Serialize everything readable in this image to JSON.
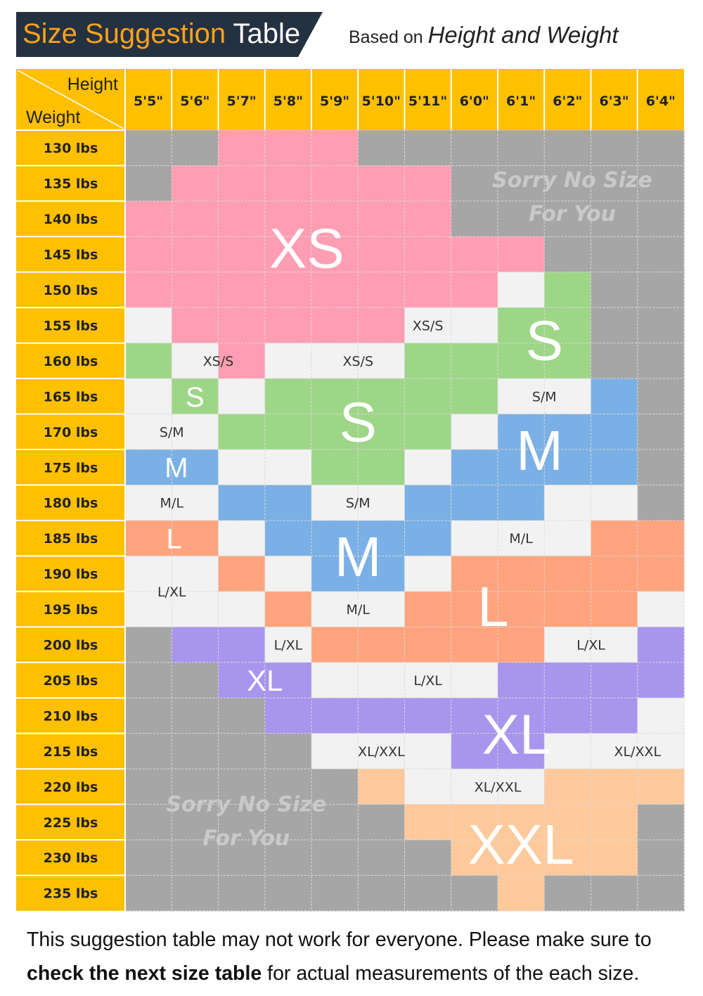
{
  "header": {
    "title_part1": "Size Suggestion",
    "title_part2": "Table",
    "subtitle_prefix": "Based on",
    "subtitle_emphasis": "Height and Weight"
  },
  "colors": {
    "header_bg": "#243140",
    "title_orange": "#f7a21d",
    "axis_yellow": "#ffc000",
    "no_size_gray": "#a6a6a6",
    "overlap_white": "#f2f2f2",
    "XS": "#ff9eb2",
    "S": "#9ed687",
    "M": "#7ab0e5",
    "L": "#ffa47e",
    "XL": "#a895ed",
    "XXL": "#ffc99c"
  },
  "table": {
    "corner_top": "Height",
    "corner_bottom": "Weight",
    "heights": [
      "5'5\"",
      "5'6\"",
      "5'7\"",
      "5'8\"",
      "5'9\"",
      "5'10\"",
      "5'11\"",
      "6'0\"",
      "6'1\"",
      "6'2\"",
      "6'3\"",
      "6'4\""
    ],
    "weights": [
      "130 lbs",
      "135 lbs",
      "140 lbs",
      "145 lbs",
      "150 lbs",
      "155 lbs",
      "160 lbs",
      "165 lbs",
      "170 lbs",
      "175 lbs",
      "180 lbs",
      "185 lbs",
      "190 lbs",
      "195 lbs",
      "200 lbs",
      "205 lbs",
      "210 lbs",
      "215 lbs",
      "220 lbs",
      "225 lbs",
      "230 lbs",
      "235 lbs"
    ],
    "grid": [
      "g g X X X g g g g g g g",
      "g X X X X X X g g g g g",
      "X X X X X X X g g g g g",
      "X X X X X X X X X g g g",
      "X X X X X X X X w S g g",
      "w X X X X X w w S S g g",
      "S w X w w w S S S S g g",
      "w S w S S S S S w w M g",
      "w w S S S S S w M M M g",
      "M M w w S S w M M M M g",
      "w w M M w w M M M w w g",
      "L L w M M M M w w w L L",
      "w w L w M M w L L L L L",
      "w w w L w w L L L L L w",
      "g V V w L L L L L w w V",
      "g g V V w w w w V V V V",
      "g g g V V V V V V V V w",
      "g g g g w w w V V w w w",
      "g g g g g Y w w w Y Y Y",
      "g g g g g g Y Y Y Y Y g",
      "g g g g g g g Y Y Y Y g",
      "g g g g g g g g Y g g g"
    ],
    "big_labels": [
      {
        "text": "XS",
        "col": 3.9,
        "row": 3.3
      },
      {
        "text": "S",
        "col": 9.0,
        "row": 5.9
      },
      {
        "text": "S",
        "col": 5.0,
        "row": 8.2
      },
      {
        "text": "S",
        "col": 1.5,
        "row": 7.5
      },
      {
        "text": "M",
        "col": 8.9,
        "row": 9.0
      },
      {
        "text": "M",
        "col": 5.0,
        "row": 12.0
      },
      {
        "text": "M",
        "col": 1.1,
        "row": 9.5
      },
      {
        "text": "L",
        "col": 7.9,
        "row": 13.4
      },
      {
        "text": "L",
        "col": 1.05,
        "row": 11.5
      },
      {
        "text": "XL",
        "col": 8.4,
        "row": 17.0
      },
      {
        "text": "XL",
        "col": 3.0,
        "row": 15.5
      },
      {
        "text": "XXL",
        "col": 8.5,
        "row": 20.1
      }
    ],
    "overlap_labels": [
      {
        "text": "XS/S",
        "col": 6.5,
        "row": 5.5
      },
      {
        "text": "XS/S",
        "col": 2.0,
        "row": 6.5
      },
      {
        "text": "XS/S",
        "col": 5.0,
        "row": 6.5
      },
      {
        "text": "S/M",
        "col": 9.0,
        "row": 7.5
      },
      {
        "text": "S/M",
        "col": 1.0,
        "row": 8.5
      },
      {
        "text": "S/M",
        "col": 5.0,
        "row": 10.5
      },
      {
        "text": "M/L",
        "col": 1.0,
        "row": 10.5
      },
      {
        "text": "M/L",
        "col": 8.5,
        "row": 11.5
      },
      {
        "text": "M/L",
        "col": 5.0,
        "row": 13.5
      },
      {
        "text": "L/XL",
        "col": 1.0,
        "row": 13.0
      },
      {
        "text": "L/XL",
        "col": 3.5,
        "row": 14.5
      },
      {
        "text": "L/XL",
        "col": 10.0,
        "row": 14.5
      },
      {
        "text": "L/XL",
        "col": 6.5,
        "row": 15.5
      },
      {
        "text": "XL/XXL",
        "col": 5.5,
        "row": 17.5
      },
      {
        "text": "XL/XXL",
        "col": 11.0,
        "row": 17.5
      },
      {
        "text": "XL/XXL",
        "col": 8.0,
        "row": 18.5
      }
    ],
    "no_size_notes": [
      {
        "line1": "Sorry No Size",
        "line2": "For You",
        "col": 9.6,
        "row": 1.8
      },
      {
        "line1": "Sorry No Size",
        "line2": "For You",
        "col": 2.6,
        "row": 19.4
      }
    ]
  },
  "footer": {
    "line1": "This suggestion table may not work for everyone. Please make sure to",
    "line2_bold": "check the next size table",
    "line2_rest": " for actual measurements of the each size."
  }
}
